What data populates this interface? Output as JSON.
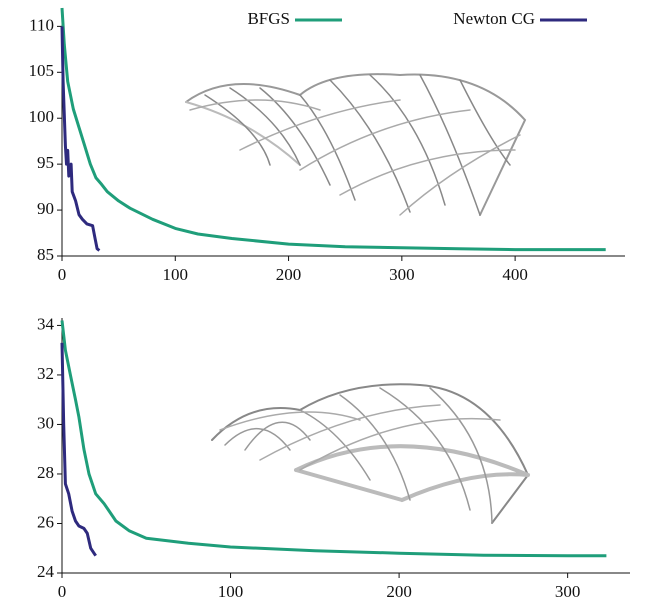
{
  "chart_data": [
    {
      "type": "line",
      "legend": "top",
      "xlim": [
        0,
        497
      ],
      "xticks": [
        0,
        100,
        200,
        300,
        400
      ],
      "ylim": [
        85,
        112
      ],
      "yticks": [
        85,
        90,
        95,
        100,
        105,
        110
      ],
      "series": [
        {
          "name": "BFGS",
          "color": "#1f9e7a",
          "x": [
            0,
            2,
            5,
            10,
            15,
            20,
            25,
            30,
            35,
            40,
            50,
            60,
            80,
            100,
            120,
            150,
            200,
            250,
            300,
            350,
            400,
            480
          ],
          "values": [
            112,
            108,
            104,
            101,
            99,
            97,
            95,
            93.5,
            92.8,
            92,
            91,
            90.2,
            89,
            88,
            87.4,
            86.9,
            86.3,
            86,
            85.9,
            85.8,
            85.7,
            85.7
          ]
        },
        {
          "name": "Newton CG",
          "color": "#2e2a7e",
          "x": [
            0,
            1,
            3,
            4,
            5,
            6,
            8,
            9,
            12,
            15,
            18,
            22,
            27,
            29,
            31,
            33
          ],
          "values": [
            110,
            104,
            97,
            95,
            96.5,
            93.7,
            95,
            92,
            91,
            89.5,
            89,
            88.5,
            88.3,
            87,
            85.8,
            85.6
          ]
        }
      ]
    },
    {
      "type": "line",
      "xlim": [
        0,
        337
      ],
      "xticks": [
        0,
        100,
        200,
        300
      ],
      "ylim": [
        24,
        34.3
      ],
      "yticks": [
        24,
        26,
        28,
        30,
        32,
        34
      ],
      "series": [
        {
          "color": "#1f9e7a",
          "x": [
            0,
            2,
            5,
            8,
            10,
            13,
            16,
            20,
            25,
            28,
            32,
            40,
            50,
            75,
            100,
            150,
            200,
            250,
            300,
            323
          ],
          "values": [
            34.2,
            33,
            32,
            31,
            30.3,
            29,
            28,
            27.2,
            26.8,
            26.5,
            26.1,
            25.7,
            25.4,
            25.2,
            25.05,
            24.9,
            24.8,
            24.72,
            24.7,
            24.7
          ]
        },
        {
          "color": "#2e2a7e",
          "x": [
            0,
            1,
            2,
            4,
            6,
            8,
            10,
            13,
            15,
            17,
            19,
            20
          ],
          "values": [
            33.3,
            30,
            27.6,
            27.2,
            26.5,
            26.1,
            25.9,
            25.8,
            25.6,
            25,
            24.8,
            24.7
          ]
        }
      ]
    }
  ]
}
